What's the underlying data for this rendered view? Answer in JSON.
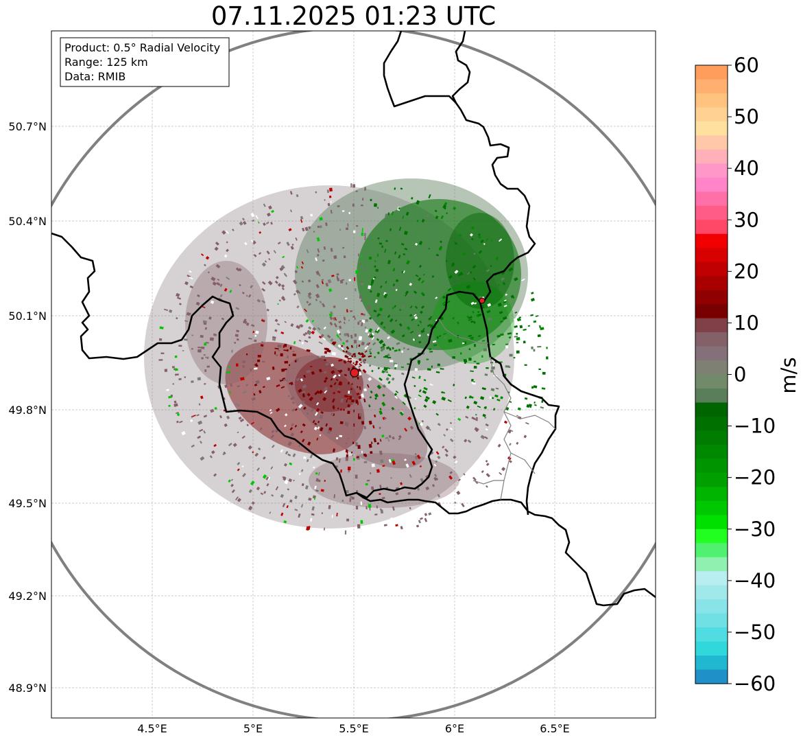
{
  "title": "07.11.2025 01:23 UTC",
  "info_box": {
    "product": "Product: 0.5° Radial Velocity",
    "range": "Range: 125 km",
    "data": "Data: RMIB"
  },
  "axes": {
    "lon_ticks": [
      "4.5°E",
      "5°E",
      "5.5°E",
      "6°E",
      "6.5°E"
    ],
    "lat_ticks": [
      "50.7°N",
      "50.4°N",
      "50.1°N",
      "49.8°N",
      "49.5°N",
      "49.2°N",
      "48.9°N"
    ]
  },
  "colorbar": {
    "unit": "m/s",
    "ticks": [
      "60",
      "50",
      "40",
      "30",
      "20",
      "10",
      "0",
      "−10",
      "−20",
      "−30",
      "−40",
      "−50",
      "−60"
    ],
    "colors": [
      "#ff9e5a",
      "#ffb070",
      "#ffc27f",
      "#ffd294",
      "#ffe09f",
      "#ffc8a8",
      "#ffb0b8",
      "#ff98c8",
      "#ff84c8",
      "#ff70a8",
      "#ff5c88",
      "#ff4868",
      "#f00000",
      "#d80000",
      "#c00000",
      "#a80000",
      "#900000",
      "#780000",
      "#804048",
      "#846068",
      "#847078",
      "#7e8074",
      "#708a6a",
      "#5a7e5a",
      "#006400",
      "#007000",
      "#007c00",
      "#008800",
      "#009400",
      "#00a000",
      "#00b400",
      "#00c800",
      "#00e000",
      "#20ff20",
      "#50f070",
      "#90f0b0",
      "#b8eef0",
      "#a0e8ea",
      "#88e4e8",
      "#70e0e4",
      "#50dce0",
      "#30d8dc",
      "#20b8d0",
      "#2090c8"
    ],
    "accent_red": "#e02020"
  },
  "radar_site": {
    "label": ""
  }
}
